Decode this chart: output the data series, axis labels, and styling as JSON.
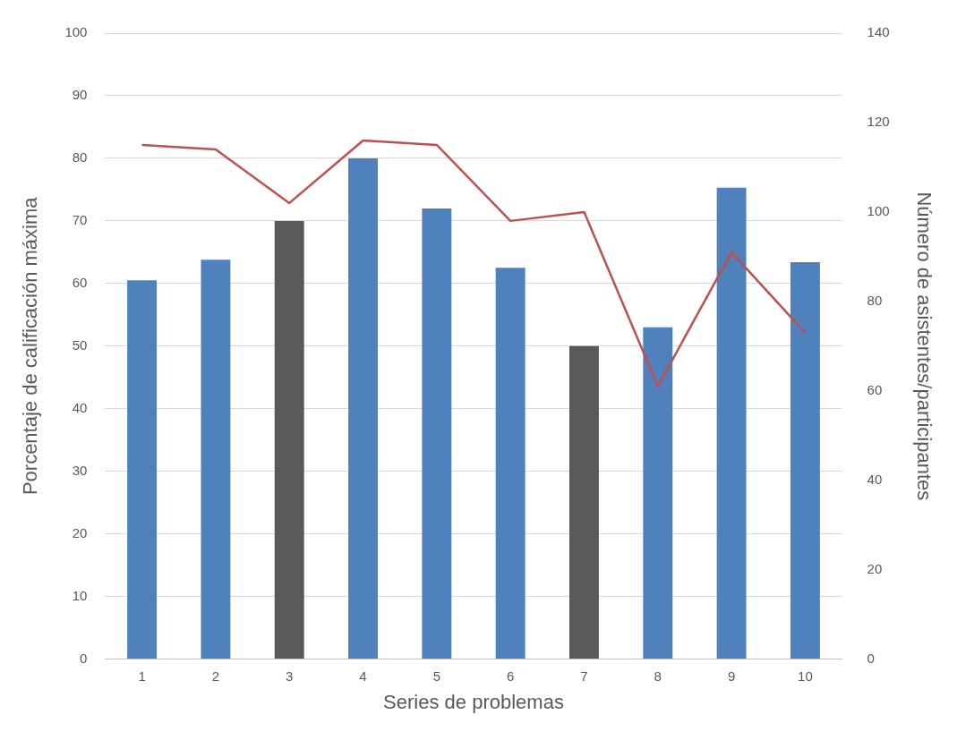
{
  "chart_data": {
    "type": "bar",
    "xlabel": "Series de problemas",
    "ylabel": "Porcentaje de calificación máxima",
    "y2label": "Número de asistentes/participantes",
    "categories": [
      "1",
      "2",
      "3",
      "4",
      "5",
      "6",
      "7",
      "8",
      "9",
      "10"
    ],
    "series": [
      {
        "colors": [
          "#4f81bd",
          "#4f81bd",
          "#595959",
          "#4f81bd",
          "#4f81bd",
          "#4f81bd",
          "#595959",
          "#4f81bd",
          "#4f81bd",
          "#4f81bd"
        ],
        "values": [
          60.5,
          63.8,
          70,
          80,
          72,
          62.5,
          50,
          53,
          75.3,
          63.4
        ]
      },
      {
        "type": "line",
        "axis": "y2",
        "color": "#c0504d",
        "values": [
          115,
          114,
          102,
          116,
          115,
          98,
          100,
          61,
          91,
          73
        ]
      }
    ],
    "ylim": [
      0,
      100
    ],
    "yticks": [
      0,
      10,
      20,
      30,
      40,
      50,
      60,
      70,
      80,
      90,
      100
    ],
    "y2lim": [
      0,
      140
    ],
    "y2ticks": [
      0,
      20,
      40,
      60,
      80,
      100,
      120,
      140
    ],
    "grid": "y",
    "legend": false,
    "marker": "none"
  }
}
